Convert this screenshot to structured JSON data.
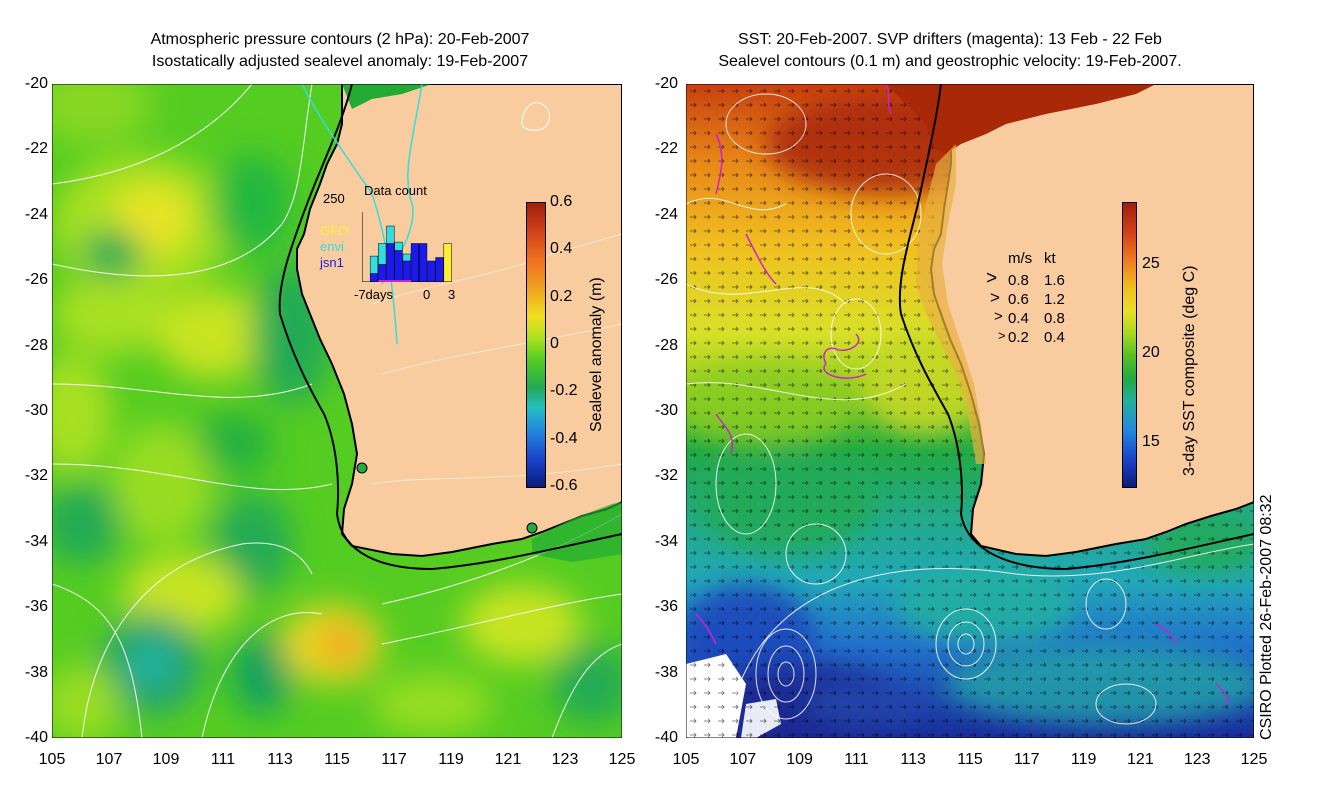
{
  "left_panel": {
    "title_line1": "Atmospheric pressure contours (2 hPa): 20-Feb-2007",
    "title_line2": "Isostatically adjusted sealevel anomaly: 19-Feb-2007",
    "y_ticks": [
      "-20",
      "-22",
      "-24",
      "-26",
      "-28",
      "-30",
      "-32",
      "-34",
      "-36",
      "-38",
      "-40"
    ],
    "x_ticks": [
      "105",
      "107",
      "109",
      "111",
      "113",
      "115",
      "117",
      "119",
      "121",
      "123",
      "125"
    ],
    "inset": {
      "title": "Data count",
      "max_label": "250",
      "legend": [
        {
          "name": "GFO",
          "color": "#ffee33"
        },
        {
          "name": "envi",
          "color": "#33dddd"
        },
        {
          "name": "jsn1",
          "color": "#1a1aee"
        }
      ],
      "x_left_label": "-7days",
      "x_mid_label": "0",
      "x_right_label": "3",
      "bars": [
        {
          "day": -7,
          "jsn1": 0.0,
          "envi": 0.0,
          "gfo": 0.0
        },
        {
          "day": -6,
          "jsn1": 0.12,
          "envi": 0.25,
          "gfo": 0.0
        },
        {
          "day": -5,
          "jsn1": 0.25,
          "envi": 0.3,
          "gfo": 0.0
        },
        {
          "day": -4,
          "jsn1": 0.55,
          "envi": 0.25,
          "gfo": 0.0
        },
        {
          "day": -3,
          "jsn1": 0.45,
          "envi": 0.12,
          "gfo": 0.0
        },
        {
          "day": -2,
          "jsn1": 0.3,
          "envi": 0.1,
          "gfo": 0.0
        },
        {
          "day": -1,
          "jsn1": 0.55,
          "envi": 0.0,
          "gfo": 0.0
        },
        {
          "day": 0,
          "jsn1": 0.55,
          "envi": 0.0,
          "gfo": 0.0
        },
        {
          "day": 1,
          "jsn1": 0.3,
          "envi": 0.0,
          "gfo": 0.0
        },
        {
          "day": 2,
          "jsn1": 0.35,
          "envi": 0.0,
          "gfo": 0.0
        },
        {
          "day": 3,
          "jsn1": 0.0,
          "envi": 0.0,
          "gfo": 0.55
        }
      ]
    },
    "colorbar": {
      "label": "Sealevel anomaly (m)",
      "ticks": [
        "0.6",
        "0.4",
        "0.2",
        "0",
        "-0.2",
        "-0.4",
        "-0.6"
      ],
      "range": [
        -0.6,
        0.6
      ]
    }
  },
  "right_panel": {
    "title_line1": "SST: 20-Feb-2007. SVP drifters (magenta): 13 Feb - 22 Feb",
    "title_line2": "Sealevel contours (0.1 m) and geostrophic velocity: 19-Feb-2007.",
    "y_ticks": [
      "-20",
      "-22",
      "-24",
      "-26",
      "-28",
      "-30",
      "-32",
      "-34",
      "-36",
      "-38",
      "-40"
    ],
    "x_ticks": [
      "105",
      "107",
      "109",
      "111",
      "113",
      "115",
      "117",
      "119",
      "121",
      "123",
      "125"
    ],
    "velocity_legend": {
      "header_ms": "m/s",
      "header_kt": "kt",
      "rows": [
        {
          "ms": "0.8",
          "kt": "1.6"
        },
        {
          "ms": "0.6",
          "kt": "1.2"
        },
        {
          "ms": "0.4",
          "kt": "0.8"
        },
        {
          "ms": "0.2",
          "kt": "0.4"
        }
      ]
    },
    "colorbar": {
      "label": "3-day SST composite (deg C)",
      "ticks": [
        "25",
        "20",
        "15"
      ],
      "range": [
        12.5,
        28.5
      ]
    }
  },
  "footer": "CSIRO Plotted 26-Feb-2007 08:32",
  "colors": {
    "land": "#f8cc9e",
    "coast": "#000000",
    "contour": "#ffffff",
    "drifter": "#d020d0",
    "cyan_track": "#33dddd"
  }
}
